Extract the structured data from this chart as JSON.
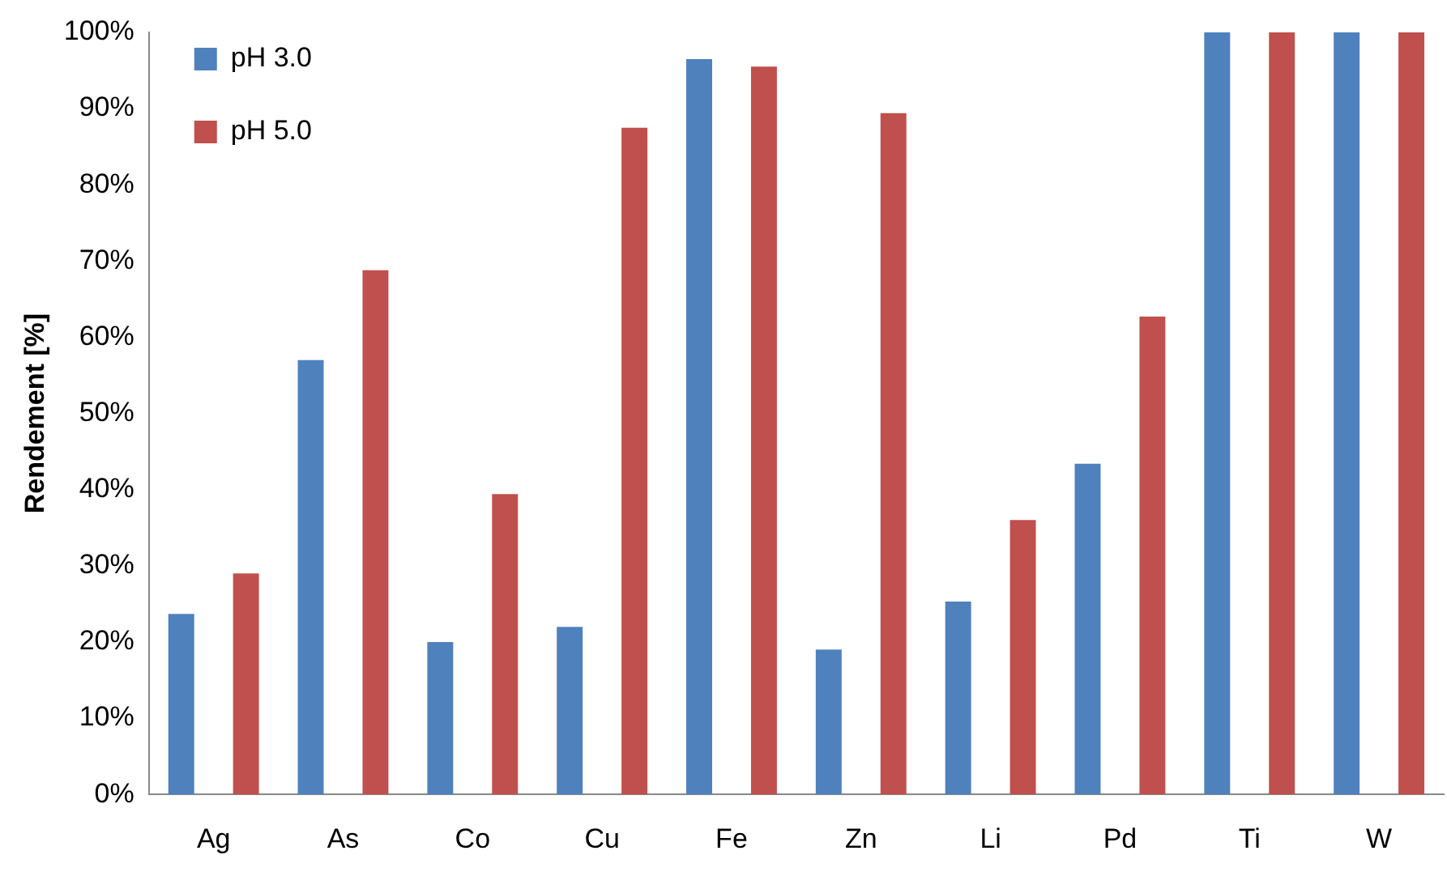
{
  "chart_data": {
    "type": "bar",
    "ylabel": "Rendement [%]",
    "categories": [
      "Ag",
      "As",
      "Co",
      "Cu",
      "Fe",
      "Zn",
      "Li",
      "Pd",
      "Ti",
      "W"
    ],
    "series": [
      {
        "name": "pH 3.0",
        "color": "#4f81bd",
        "values": [
          23.7,
          57,
          20,
          22,
          96.5,
          19,
          25.3,
          43.4,
          100,
          100
        ]
      },
      {
        "name": "pH 5.0",
        "color": "#c0504d",
        "values": [
          29,
          68.8,
          39.4,
          87.5,
          95.5,
          89.4,
          36,
          62.7,
          100,
          100
        ]
      }
    ],
    "ylim": [
      0,
      100
    ],
    "yticks": [
      {
        "value": 0,
        "label": "0%"
      },
      {
        "value": 10,
        "label": "10%"
      },
      {
        "value": 20,
        "label": "20%"
      },
      {
        "value": 30,
        "label": "30%"
      },
      {
        "value": 40,
        "label": "40%"
      },
      {
        "value": 50,
        "label": "50%"
      },
      {
        "value": 60,
        "label": "60%"
      },
      {
        "value": 70,
        "label": "70%"
      },
      {
        "value": 80,
        "label": "80%"
      },
      {
        "value": 90,
        "label": "90%"
      },
      {
        "value": 100,
        "label": "100%"
      }
    ],
    "grid": false,
    "legend": "top left"
  }
}
